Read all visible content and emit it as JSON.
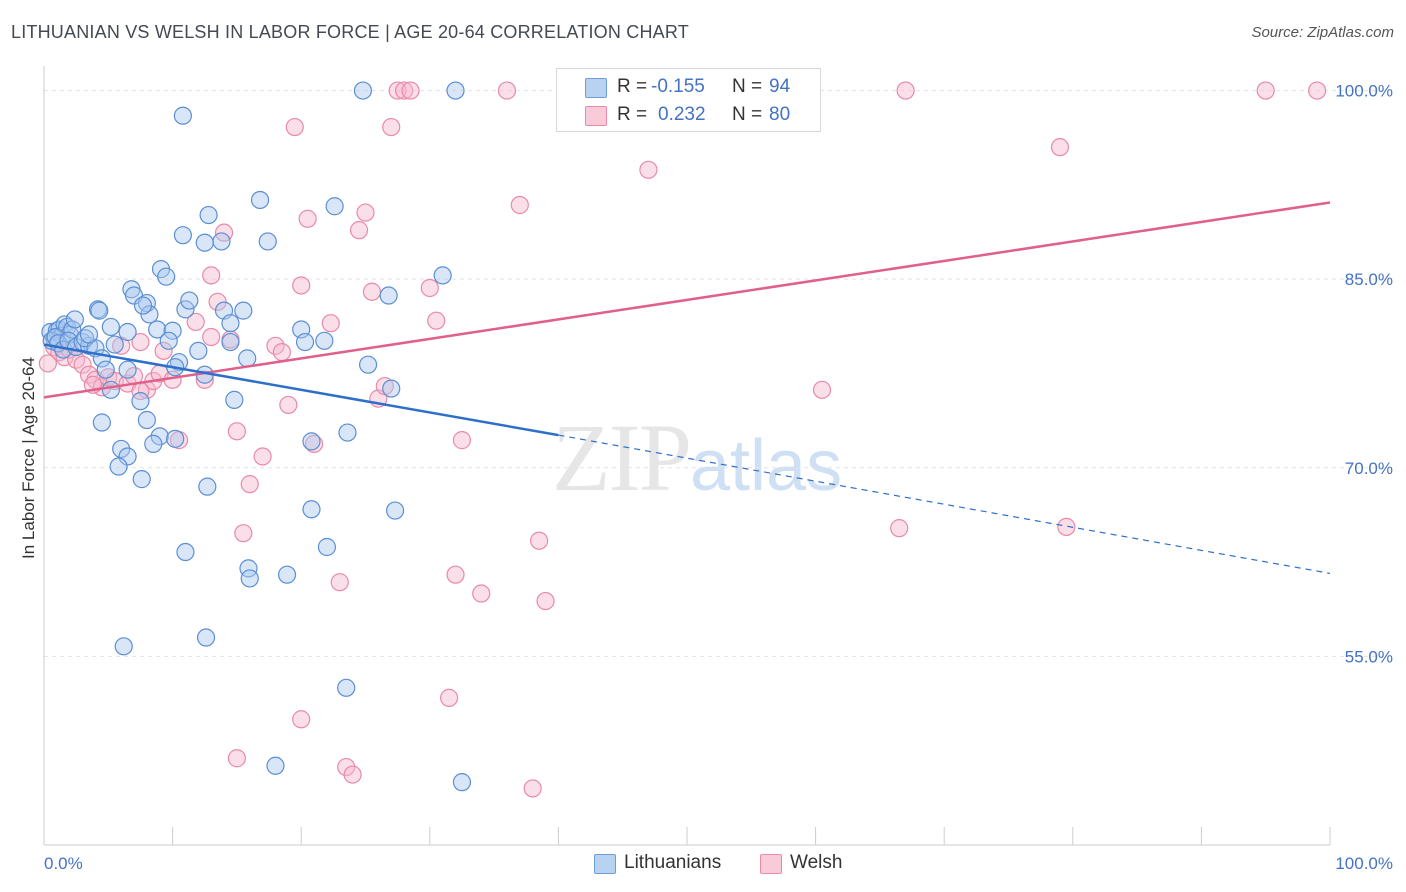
{
  "header": {
    "title": "LITHUANIAN VS WELSH IN LABOR FORCE | AGE 20-64 CORRELATION CHART",
    "source": "Source: ZipAtlas.com"
  },
  "legend": {
    "rows": [
      {
        "r_label": "R =",
        "r_value": "-0.155",
        "n_label": "N =",
        "n_value": "94"
      },
      {
        "r_label": "R =",
        "r_value": "0.232",
        "n_label": "N =",
        "n_value": "80"
      }
    ]
  },
  "bottom_legend": {
    "items": [
      {
        "label": "Lithuanians"
      },
      {
        "label": "Welsh"
      }
    ]
  },
  "watermark": {
    "zip": "ZIP",
    "atlas": "atlas"
  },
  "colors": {
    "lithuanians_fill": "#a9c8f0",
    "lithuanians_stroke": "#5b8fd4",
    "lithuanians_line": "#2e6fcc",
    "welsh_fill": "#f6b8cc",
    "welsh_stroke": "#e88aa8",
    "welsh_line": "#e0608a",
    "tick_text": "#4472c4",
    "grid": "#e3e3e3"
  },
  "chart_data": {
    "type": "scatter",
    "title": "LITHUANIAN VS WELSH IN LABOR FORCE | AGE 20-64 CORRELATION CHART",
    "xlabel": "",
    "ylabel": "In Labor Force | Age 20-64",
    "xlim": [
      0,
      100
    ],
    "ylim": [
      40,
      101
    ],
    "x_tick_labels": [
      "0.0%",
      "100.0%"
    ],
    "y_ticks": [
      55,
      70,
      85,
      100
    ],
    "y_tick_labels": [
      "55.0%",
      "70.0%",
      "85.0%",
      "100.0%"
    ],
    "grid": true,
    "series": [
      {
        "name": "Lithuanians",
        "r": -0.155,
        "n": 94,
        "trend": {
          "x0": 0,
          "y0": 79.8,
          "x1": 40,
          "y1": 72.6,
          "dashed_to_x": 100,
          "dashed_to_y": 61.6
        },
        "points": [
          [
            0.5,
            80.8
          ],
          [
            0.8,
            80.3
          ],
          [
            1.0,
            80.9
          ],
          [
            1.2,
            81.0
          ],
          [
            1.4,
            80.5
          ],
          [
            1.6,
            81.4
          ],
          [
            1.8,
            81.2
          ],
          [
            2.0,
            80.6
          ],
          [
            2.2,
            81.0
          ],
          [
            2.4,
            81.8
          ],
          [
            0.6,
            80.1
          ],
          [
            0.9,
            80.4
          ],
          [
            1.1,
            79.9
          ],
          [
            1.5,
            79.4
          ],
          [
            1.9,
            80.1
          ],
          [
            2.5,
            79.6
          ],
          [
            3.0,
            80.0
          ],
          [
            3.5,
            79.7
          ],
          [
            3.2,
            80.3
          ],
          [
            4.0,
            79.5
          ],
          [
            4.5,
            78.7
          ],
          [
            4.2,
            82.6
          ],
          [
            4.3,
            82.5
          ],
          [
            5.2,
            81.2
          ],
          [
            5.5,
            79.8
          ],
          [
            6.5,
            77.8
          ],
          [
            6.8,
            84.2
          ],
          [
            7.0,
            83.7
          ],
          [
            8.0,
            83.1
          ],
          [
            8.2,
            82.2
          ],
          [
            8.8,
            81.0
          ],
          [
            9.1,
            85.8
          ],
          [
            9.5,
            85.2
          ],
          [
            10.0,
            80.9
          ],
          [
            10.5,
            78.4
          ],
          [
            11.0,
            82.6
          ],
          [
            11.3,
            83.3
          ],
          [
            12.0,
            79.3
          ],
          [
            12.5,
            77.4
          ],
          [
            14.0,
            82.5
          ],
          [
            14.5,
            81.5
          ],
          [
            9.7,
            80.1
          ],
          [
            6.5,
            80.8
          ],
          [
            7.5,
            75.3
          ],
          [
            8.0,
            73.8
          ],
          [
            9.0,
            72.5
          ],
          [
            10.2,
            72.3
          ],
          [
            8.5,
            71.9
          ],
          [
            6.0,
            71.5
          ],
          [
            6.5,
            70.9
          ],
          [
            5.8,
            70.1
          ],
          [
            7.6,
            69.1
          ],
          [
            4.8,
            77.8
          ],
          [
            5.2,
            76.2
          ],
          [
            4.5,
            73.6
          ],
          [
            6.2,
            55.8
          ],
          [
            10.8,
            98.0
          ],
          [
            10.8,
            88.5
          ],
          [
            12.8,
            90.1
          ],
          [
            13.8,
            88.0
          ],
          [
            16.8,
            91.3
          ],
          [
            17.4,
            88.0
          ],
          [
            22.6,
            90.8
          ],
          [
            24.8,
            100
          ],
          [
            32.0,
            100
          ],
          [
            32.5,
            45.0
          ],
          [
            18.9,
            61.5
          ],
          [
            15.9,
            62.0
          ],
          [
            16.0,
            61.2
          ],
          [
            18.0,
            46.3
          ],
          [
            12.6,
            56.5
          ],
          [
            23.5,
            52.5
          ],
          [
            22.0,
            63.7
          ],
          [
            20.8,
            66.7
          ],
          [
            27.3,
            66.6
          ],
          [
            12.7,
            68.5
          ],
          [
            11.0,
            63.3
          ],
          [
            15.8,
            78.7
          ],
          [
            20.0,
            81.0
          ],
          [
            20.3,
            80.0
          ],
          [
            21.8,
            80.1
          ],
          [
            23.6,
            72.8
          ],
          [
            20.8,
            72.1
          ],
          [
            25.2,
            78.2
          ],
          [
            26.8,
            83.7
          ],
          [
            27.0,
            76.3
          ],
          [
            31.0,
            85.3
          ],
          [
            10.2,
            78.0
          ],
          [
            14.8,
            75.4
          ],
          [
            12.5,
            87.9
          ],
          [
            15.5,
            82.5
          ],
          [
            14.5,
            80.0
          ],
          [
            7.7,
            82.9
          ],
          [
            3.5,
            80.6
          ]
        ]
      },
      {
        "name": "Welsh",
        "r": 0.232,
        "n": 80,
        "trend": {
          "x0": 0,
          "y0": 75.6,
          "x1": 100,
          "y1": 91.1
        },
        "points": [
          [
            0.3,
            78.3
          ],
          [
            0.8,
            79.6
          ],
          [
            1.2,
            79.2
          ],
          [
            1.6,
            78.8
          ],
          [
            2.0,
            79.4
          ],
          [
            2.5,
            78.6
          ],
          [
            3.0,
            78.2
          ],
          [
            3.5,
            77.4
          ],
          [
            4.0,
            77.0
          ],
          [
            4.5,
            76.4
          ],
          [
            5.0,
            77.2
          ],
          [
            5.5,
            76.9
          ],
          [
            6.0,
            79.7
          ],
          [
            6.5,
            76.7
          ],
          [
            7.0,
            77.3
          ],
          [
            7.5,
            80.0
          ],
          [
            8.0,
            76.2
          ],
          [
            8.5,
            76.9
          ],
          [
            9.0,
            77.5
          ],
          [
            10.0,
            77.0
          ],
          [
            10.5,
            72.2
          ],
          [
            11.8,
            81.6
          ],
          [
            12.5,
            77.0
          ],
          [
            13.0,
            80.4
          ],
          [
            13.5,
            83.2
          ],
          [
            14.0,
            88.7
          ],
          [
            14.5,
            80.2
          ],
          [
            15.0,
            72.9
          ],
          [
            15.5,
            64.8
          ],
          [
            16.0,
            68.7
          ],
          [
            17.0,
            70.9
          ],
          [
            18.0,
            79.7
          ],
          [
            18.5,
            79.2
          ],
          [
            19.0,
            75.0
          ],
          [
            19.5,
            97.1
          ],
          [
            20.0,
            84.5
          ],
          [
            20.5,
            89.8
          ],
          [
            21.0,
            71.9
          ],
          [
            22.3,
            81.5
          ],
          [
            23.0,
            60.9
          ],
          [
            23.5,
            46.2
          ],
          [
            24.0,
            45.6
          ],
          [
            24.5,
            88.9
          ],
          [
            25.0,
            90.3
          ],
          [
            25.5,
            84.0
          ],
          [
            26.0,
            75.5
          ],
          [
            26.5,
            76.5
          ],
          [
            27.0,
            97.1
          ],
          [
            27.5,
            100
          ],
          [
            28.0,
            100
          ],
          [
            30.0,
            84.3
          ],
          [
            30.5,
            81.7
          ],
          [
            31.5,
            51.7
          ],
          [
            32.0,
            61.5
          ],
          [
            32.5,
            72.2
          ],
          [
            34.0,
            60.0
          ],
          [
            36.0,
            100
          ],
          [
            37.0,
            90.9
          ],
          [
            38.0,
            44.5
          ],
          [
            38.5,
            64.2
          ],
          [
            39.0,
            59.4
          ],
          [
            42.0,
            100
          ],
          [
            45.0,
            100
          ],
          [
            47.0,
            93.7
          ],
          [
            50.0,
            100
          ],
          [
            56.0,
            100
          ],
          [
            60.5,
            76.2
          ],
          [
            66.5,
            65.2
          ],
          [
            67.0,
            100
          ],
          [
            79.5,
            65.3
          ],
          [
            79.0,
            95.5
          ],
          [
            95.0,
            100
          ],
          [
            99.0,
            100
          ],
          [
            20.0,
            50.0
          ],
          [
            15.0,
            46.9
          ],
          [
            13.0,
            85.3
          ],
          [
            9.3,
            79.3
          ],
          [
            7.5,
            76.1
          ],
          [
            3.8,
            76.6
          ],
          [
            28.5,
            100
          ]
        ]
      }
    ]
  }
}
